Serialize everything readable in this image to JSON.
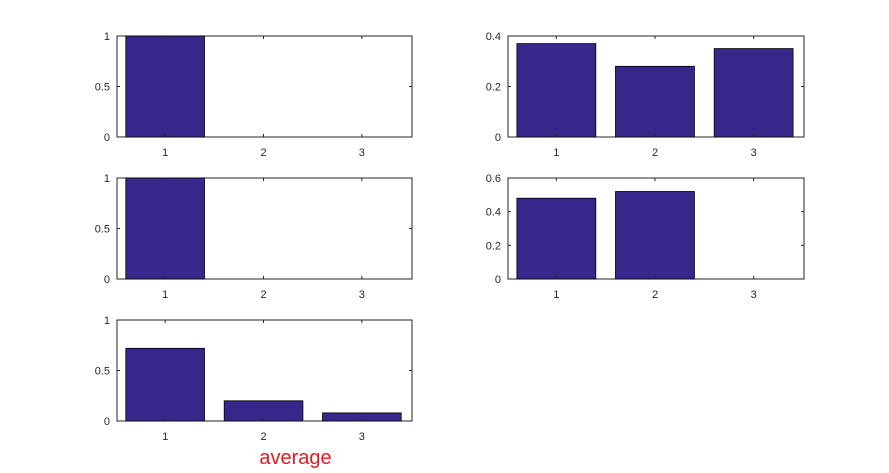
{
  "figure": {
    "bar_color": "#35288a",
    "axes_color": "#262626",
    "caption": {
      "text": "average",
      "color": "#e31a1c"
    }
  },
  "chart_data": [
    {
      "type": "bar",
      "position": "row-1-left",
      "categories": [
        "1",
        "2",
        "3"
      ],
      "values": [
        1,
        0,
        0
      ],
      "ylim": [
        0,
        1
      ],
      "yticks": [
        "0",
        "0.5",
        "1"
      ],
      "ytick_values": [
        0,
        0.5,
        1
      ],
      "grid": false,
      "xlabel": "",
      "ylabel": "",
      "title": ""
    },
    {
      "type": "bar",
      "position": "row-1-right",
      "categories": [
        "1",
        "2",
        "3"
      ],
      "values": [
        0.37,
        0.28,
        0.35
      ],
      "ylim": [
        0,
        0.4
      ],
      "yticks": [
        "0",
        "0.2",
        "0.4"
      ],
      "ytick_values": [
        0,
        0.2,
        0.4
      ],
      "grid": false,
      "xlabel": "",
      "ylabel": "",
      "title": ""
    },
    {
      "type": "bar",
      "position": "row-2-left",
      "categories": [
        "1",
        "2",
        "3"
      ],
      "values": [
        1,
        0,
        0
      ],
      "ylim": [
        0,
        1
      ],
      "yticks": [
        "0",
        "0.5",
        "1"
      ],
      "ytick_values": [
        0,
        0.5,
        1
      ],
      "grid": false,
      "xlabel": "",
      "ylabel": "",
      "title": ""
    },
    {
      "type": "bar",
      "position": "row-2-right",
      "categories": [
        "1",
        "2",
        "3"
      ],
      "values": [
        0.48,
        0.52,
        0
      ],
      "ylim": [
        0,
        0.6
      ],
      "yticks": [
        "0",
        "0.2",
        "0.4",
        "0.6"
      ],
      "ytick_values": [
        0,
        0.2,
        0.4,
        0.6
      ],
      "grid": false,
      "xlabel": "",
      "ylabel": "",
      "title": ""
    },
    {
      "type": "bar",
      "position": "row-3-left",
      "categories": [
        "1",
        "2",
        "3"
      ],
      "values": [
        0.72,
        0.2,
        0.08
      ],
      "ylim": [
        0,
        1
      ],
      "yticks": [
        "0",
        "0.5",
        "1"
      ],
      "ytick_values": [
        0,
        0.5,
        1
      ],
      "grid": false,
      "xlabel": "average",
      "ylabel": "",
      "title": ""
    }
  ]
}
